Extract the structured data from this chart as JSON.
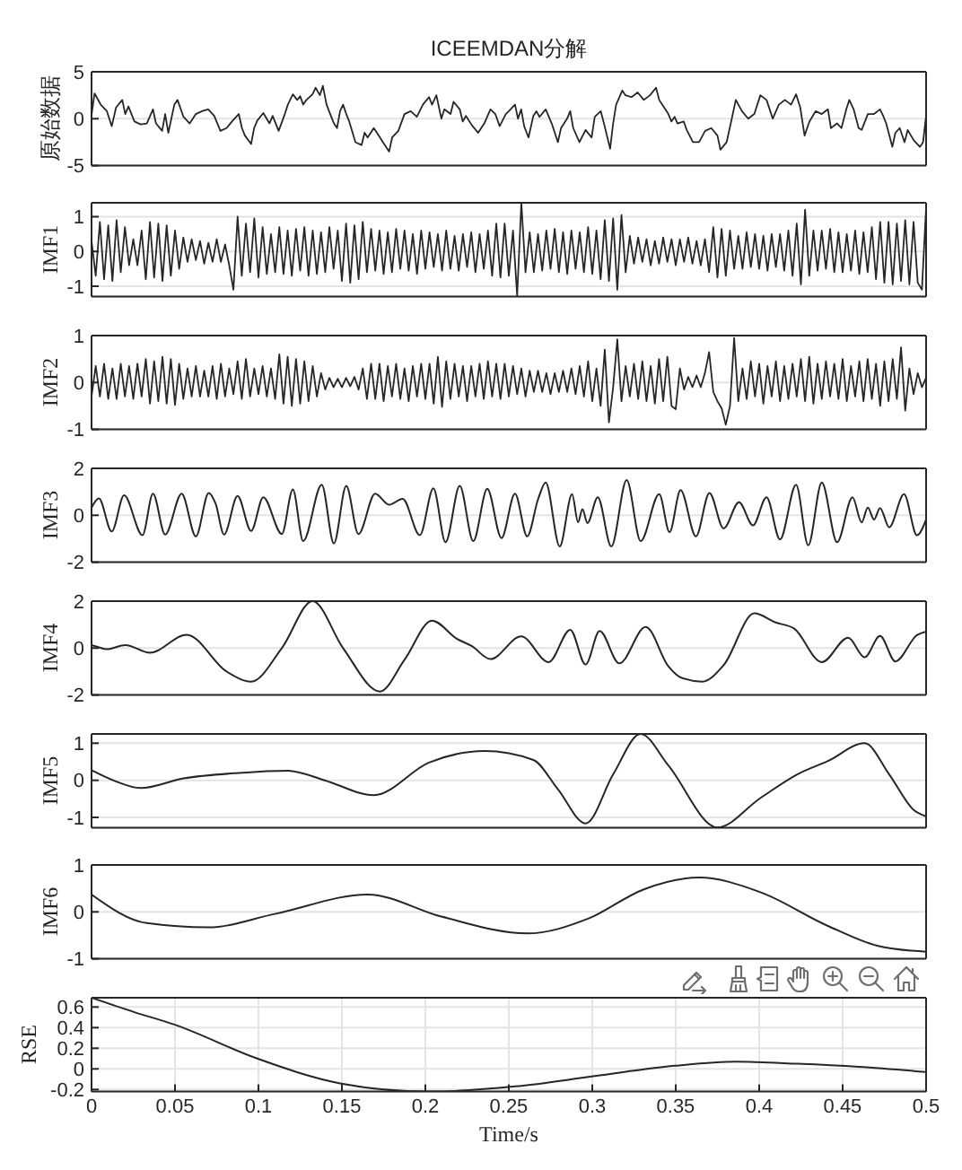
{
  "chart_data": [
    {
      "type": "line",
      "title": "ICEEMDAN分解",
      "ylabel": "原始数据",
      "color": "#262626",
      "xlim": [
        0,
        0.5
      ],
      "ylim": [
        -5,
        5
      ],
      "yticks": [
        -5,
        0,
        5
      ],
      "grid": "y",
      "tick_labels": "y",
      "x": [
        0,
        0.0018,
        0.0055,
        0.0092,
        0.0121,
        0.0147,
        0.0184,
        0.0202,
        0.0221,
        0.0257,
        0.0294,
        0.0331,
        0.0368,
        0.0386,
        0.0423,
        0.0441,
        0.046,
        0.0496,
        0.0515,
        0.0551,
        0.0588,
        0.0625,
        0.0662,
        0.0699,
        0.0735,
        0.0772,
        0.0809,
        0.0846,
        0.0882,
        0.0901,
        0.0919,
        0.0956,
        0.0974,
        0.0993,
        0.1029,
        0.1066,
        0.1085,
        0.1121,
        0.1158,
        0.1176,
        0.1206,
        0.1232,
        0.125,
        0.1268,
        0.1287,
        0.1324,
        0.1342,
        0.1368,
        0.1386,
        0.1408,
        0.1434,
        0.1452,
        0.1471,
        0.1489,
        0.1507,
        0.1526,
        0.1544,
        0.1581,
        0.1618,
        0.1636,
        0.1654,
        0.1691,
        0.171,
        0.1746,
        0.1783,
        0.1801,
        0.1838,
        0.1875,
        0.1912,
        0.1949,
        0.1985,
        0.2022,
        0.204,
        0.2066,
        0.2096,
        0.2114,
        0.2151,
        0.2169,
        0.2206,
        0.2224,
        0.2243,
        0.2279,
        0.2316,
        0.2353,
        0.239,
        0.2419,
        0.2445,
        0.2482,
        0.25,
        0.2537,
        0.2555,
        0.2574,
        0.2592,
        0.2618,
        0.2647,
        0.2665,
        0.2684,
        0.2721,
        0.2757,
        0.2794,
        0.2813,
        0.2849,
        0.2868,
        0.2886,
        0.2923,
        0.296,
        0.2996,
        0.3015,
        0.3051,
        0.307,
        0.3107,
        0.3125,
        0.3143,
        0.318,
        0.3199,
        0.3235,
        0.3272,
        0.3309,
        0.3346,
        0.3382,
        0.3401,
        0.3419,
        0.3456,
        0.3474,
        0.3493,
        0.3511,
        0.3548,
        0.3566,
        0.3603,
        0.364,
        0.3676,
        0.3713,
        0.375,
        0.3768,
        0.3805,
        0.3842,
        0.386,
        0.3897,
        0.3934,
        0.3971,
        0.4007,
        0.4044,
        0.4063,
        0.4081,
        0.4118,
        0.4154,
        0.4191,
        0.4221,
        0.4246,
        0.4272,
        0.4301,
        0.4338,
        0.4375,
        0.4412,
        0.443,
        0.4467,
        0.4493,
        0.4522,
        0.454,
        0.4566,
        0.4596,
        0.4614,
        0.4651,
        0.4688,
        0.4724,
        0.4743,
        0.4761,
        0.4798,
        0.4816,
        0.4842,
        0.4871,
        0.489,
        0.4926,
        0.4963,
        0.4982,
        0.5
      ],
      "values": [
        0.4,
        2.7,
        1.5,
        0.8,
        -0.8,
        1.2,
        2.0,
        0.5,
        1.3,
        -0.3,
        -0.6,
        -0.5,
        1.0,
        -0.5,
        -1.3,
        0.5,
        -1.5,
        1.5,
        2.0,
        0.2,
        -0.5,
        0.5,
        0.8,
        1.0,
        0.3,
        -1.3,
        -1.0,
        -0.2,
        0.5,
        -1.0,
        -1.8,
        -2.7,
        -1.0,
        -0.2,
        0.6,
        -0.5,
        0.3,
        -1.3,
        0.5,
        1.5,
        2.6,
        2.0,
        2.4,
        1.5,
        2.0,
        2.6,
        3.3,
        2.5,
        3.5,
        1.5,
        0.3,
        -0.5,
        -1.0,
        0.8,
        1.5,
        0.5,
        -0.3,
        -2.5,
        -2.8,
        -1.5,
        -2.0,
        -1.0,
        -1.5,
        -2.5,
        -3.5,
        -2.0,
        -1.3,
        0.5,
        0.8,
        0.2,
        1.5,
        2.3,
        1.5,
        2.5,
        0.0,
        1.0,
        0.5,
        1.8,
        1.0,
        -0.3,
        0.3,
        -0.7,
        -1.5,
        -0.5,
        1.0,
        0.5,
        -0.8,
        0.5,
        0.8,
        1.5,
        0.0,
        1.0,
        -0.8,
        -2.0,
        0.3,
        0.8,
        0.2,
        1.0,
        -0.5,
        -2.5,
        -1.0,
        0.0,
        0.8,
        -1.0,
        -2.5,
        -1.2,
        -2.0,
        0.2,
        0.8,
        -0.5,
        -3.2,
        -0.5,
        1.5,
        3.0,
        2.5,
        2.3,
        2.8,
        2.0,
        2.5,
        3.3,
        2.0,
        1.5,
        0.5,
        -0.3,
        0.2,
        -0.5,
        -0.3,
        -1.2,
        -2.5,
        -2.5,
        -1.3,
        -1.0,
        -1.8,
        -3.3,
        -2.5,
        0.5,
        2.0,
        0.8,
        0.0,
        0.5,
        2.5,
        2.0,
        1.0,
        0.0,
        1.5,
        2.0,
        1.5,
        2.6,
        1.2,
        -1.8,
        -0.3,
        0.8,
        0.5,
        1.0,
        -1.0,
        -0.5,
        -1.0,
        1.0,
        2.0,
        1.0,
        -1.0,
        -1.2,
        0.5,
        0.5,
        1.0,
        0.3,
        -0.5,
        -3.0,
        -1.5,
        -1.0,
        -2.5,
        -1.2,
        -2.3,
        -3.0,
        -2.5,
        0.3
      ]
    },
    {
      "type": "line",
      "ylabel": "IMF1",
      "color": "#262626",
      "xlim": [
        0,
        0.5
      ],
      "ylim": [
        -1.3,
        1.4
      ],
      "yticks": [
        -1,
        0,
        1
      ],
      "grid": "y",
      "tick_labels": "y",
      "x": [
        0,
        0.0025,
        0.005,
        0.0075,
        0.01,
        0.0125,
        0.015,
        0.0175,
        0.02,
        0.0225,
        0.025,
        0.0275,
        0.03,
        0.0325,
        0.035,
        0.0375,
        0.04,
        0.0425,
        0.045,
        0.0475,
        0.05,
        0.0525,
        0.055,
        0.0575,
        0.06,
        0.0625,
        0.065,
        0.0675,
        0.07,
        0.0725,
        0.075,
        0.0775,
        0.08,
        0.0825,
        0.085,
        0.0875,
        0.09,
        0.0925,
        0.095,
        0.0975,
        0.1,
        0.1025,
        0.105,
        0.1075,
        0.11,
        0.1125,
        0.115,
        0.1175,
        0.12,
        0.1225,
        0.125,
        0.1275,
        0.13,
        0.1325,
        0.135,
        0.1375,
        0.14,
        0.1425,
        0.145,
        0.1475,
        0.15,
        0.1525,
        0.155,
        0.1575,
        0.16,
        0.1625,
        0.165,
        0.1675,
        0.17,
        0.1725,
        0.175,
        0.1775,
        0.18,
        0.1825,
        0.185,
        0.1875,
        0.19,
        0.1925,
        0.195,
        0.1975,
        0.2,
        0.2025,
        0.205,
        0.2075,
        0.21,
        0.2125,
        0.215,
        0.2175,
        0.22,
        0.2225,
        0.225,
        0.2275,
        0.23,
        0.2325,
        0.235,
        0.2375,
        0.24,
        0.2425,
        0.245,
        0.2475,
        0.25,
        0.2525,
        0.255,
        0.2575,
        0.26,
        0.2625,
        0.265,
        0.2675,
        0.27,
        0.2725,
        0.275,
        0.2775,
        0.28,
        0.2825,
        0.285,
        0.2875,
        0.29,
        0.2925,
        0.295,
        0.2975,
        0.3,
        0.3025,
        0.305,
        0.3075,
        0.31,
        0.3125,
        0.315,
        0.3175,
        0.32,
        0.3225,
        0.325,
        0.3275,
        0.33,
        0.3325,
        0.335,
        0.3375,
        0.34,
        0.3425,
        0.345,
        0.3475,
        0.35,
        0.3525,
        0.355,
        0.3575,
        0.36,
        0.3625,
        0.365,
        0.3675,
        0.37,
        0.3725,
        0.375,
        0.3775,
        0.38,
        0.3825,
        0.385,
        0.3875,
        0.39,
        0.3925,
        0.395,
        0.3975,
        0.4,
        0.4025,
        0.405,
        0.4075,
        0.41,
        0.4125,
        0.415,
        0.4175,
        0.42,
        0.4225,
        0.425,
        0.4275,
        0.43,
        0.4325,
        0.435,
        0.4375,
        0.44,
        0.4425,
        0.445,
        0.4475,
        0.45,
        0.4525,
        0.455,
        0.4575,
        0.46,
        0.4625,
        0.465,
        0.4675,
        0.47,
        0.4725,
        0.475,
        0.4775,
        0.48,
        0.4825,
        0.485,
        0.4875,
        0.49,
        0.4925,
        0.495,
        0.4975,
        0.5
      ],
      "values": [
        0.3,
        -0.7,
        0.85,
        -0.8,
        0.75,
        -0.85,
        0.9,
        -0.6,
        0.7,
        -0.4,
        0.35,
        -0.4,
        0.6,
        -0.8,
        0.85,
        -0.75,
        0.8,
        -0.85,
        0.75,
        -0.7,
        0.6,
        -0.5,
        0.4,
        -0.3,
        0.35,
        -0.25,
        0.3,
        -0.35,
        0.25,
        -0.3,
        0.35,
        -0.3,
        0.2,
        -0.4,
        -1.1,
        1.0,
        -0.7,
        0.8,
        -0.6,
        0.95,
        -0.75,
        0.7,
        -0.65,
        0.5,
        -0.6,
        0.7,
        -0.65,
        0.6,
        -0.7,
        0.65,
        -0.55,
        0.7,
        -0.7,
        0.6,
        -0.65,
        0.55,
        -0.6,
        0.7,
        -0.5,
        0.6,
        -0.85,
        0.8,
        -0.9,
        0.75,
        -0.8,
        0.85,
        -0.6,
        0.65,
        -0.55,
        0.6,
        -0.65,
        0.55,
        -0.6,
        0.65,
        -0.5,
        0.6,
        -0.55,
        0.5,
        -0.65,
        0.6,
        -0.5,
        0.55,
        -0.45,
        0.5,
        -0.55,
        0.6,
        -0.5,
        0.45,
        -0.55,
        0.5,
        -0.45,
        0.55,
        -0.6,
        0.5,
        -0.5,
        0.6,
        -0.7,
        0.8,
        -0.75,
        0.8,
        -0.7,
        0.6,
        -1.28,
        1.4,
        -0.6,
        0.55,
        -0.6,
        0.5,
        -0.55,
        0.6,
        -0.5,
        0.65,
        -0.6,
        0.55,
        -0.65,
        0.6,
        -0.5,
        0.55,
        -0.6,
        0.7,
        -0.65,
        0.6,
        -0.8,
        0.9,
        -0.85,
        0.95,
        -1.1,
        1.05,
        -0.6,
        0.45,
        -0.35,
        0.4,
        -0.3,
        0.35,
        -0.4,
        0.3,
        -0.35,
        0.4,
        -0.3,
        0.35,
        -0.4,
        0.35,
        -0.3,
        0.4,
        -0.35,
        0.3,
        -0.4,
        0.35,
        -0.6,
        0.7,
        -0.75,
        0.65,
        -0.7,
        0.6,
        -0.5,
        0.45,
        -0.5,
        0.55,
        -0.45,
        0.5,
        -0.5,
        0.45,
        -0.55,
        0.5,
        -0.45,
        0.5,
        -0.55,
        0.6,
        -0.7,
        0.8,
        -0.95,
        1.2,
        -0.7,
        0.6,
        -0.55,
        0.6,
        -0.5,
        0.65,
        -0.6,
        0.55,
        -0.6,
        0.5,
        -0.55,
        0.6,
        -0.65,
        0.55,
        -0.6,
        0.7,
        -0.8,
        0.85,
        -0.9,
        0.85,
        -0.95,
        0.8,
        -0.85,
        0.9,
        -0.95,
        0.85,
        -0.9,
        -1.1,
        1.25
      ]
    },
    {
      "type": "line",
      "ylabel": "IMF2",
      "color": "#262626",
      "xlim": [
        0,
        0.5
      ],
      "ylim": [
        -1,
        1
      ],
      "yticks": [
        -1,
        0,
        1
      ],
      "grid": "y",
      "tick_labels": "y",
      "x": [
        0,
        0.0025,
        0.005,
        0.0075,
        0.01,
        0.0125,
        0.015,
        0.0175,
        0.02,
        0.0225,
        0.025,
        0.0275,
        0.03,
        0.0325,
        0.035,
        0.0375,
        0.04,
        0.0425,
        0.045,
        0.0475,
        0.05,
        0.0525,
        0.055,
        0.0575,
        0.06,
        0.0625,
        0.065,
        0.0675,
        0.07,
        0.0725,
        0.075,
        0.0775,
        0.08,
        0.0825,
        0.085,
        0.0875,
        0.09,
        0.0925,
        0.095,
        0.0975,
        0.1,
        0.1025,
        0.105,
        0.1075,
        0.11,
        0.1125,
        0.115,
        0.1175,
        0.12,
        0.1225,
        0.125,
        0.1275,
        0.13,
        0.1325,
        0.135,
        0.1375,
        0.14,
        0.1425,
        0.145,
        0.1475,
        0.15,
        0.1525,
        0.155,
        0.1575,
        0.16,
        0.1625,
        0.165,
        0.1675,
        0.17,
        0.1725,
        0.175,
        0.1775,
        0.18,
        0.1825,
        0.185,
        0.1875,
        0.19,
        0.1925,
        0.195,
        0.1975,
        0.2,
        0.2025,
        0.205,
        0.2075,
        0.21,
        0.2125,
        0.215,
        0.2175,
        0.22,
        0.2225,
        0.225,
        0.2275,
        0.23,
        0.2325,
        0.235,
        0.2375,
        0.24,
        0.2425,
        0.245,
        0.2475,
        0.25,
        0.2525,
        0.255,
        0.2575,
        0.26,
        0.2625,
        0.265,
        0.2675,
        0.27,
        0.2725,
        0.275,
        0.2775,
        0.28,
        0.2825,
        0.285,
        0.2875,
        0.29,
        0.2925,
        0.295,
        0.2975,
        0.3,
        0.3025,
        0.305,
        0.3075,
        0.31,
        0.3125,
        0.315,
        0.3175,
        0.32,
        0.3225,
        0.325,
        0.3275,
        0.33,
        0.3325,
        0.335,
        0.3375,
        0.34,
        0.3425,
        0.345,
        0.3475,
        0.35,
        0.3525,
        0.355,
        0.3575,
        0.36,
        0.3625,
        0.365,
        0.3675,
        0.37,
        0.3725,
        0.375,
        0.3775,
        0.38,
        0.3825,
        0.385,
        0.3875,
        0.39,
        0.3925,
        0.395,
        0.3975,
        0.4,
        0.4025,
        0.405,
        0.4075,
        0.41,
        0.4125,
        0.415,
        0.4175,
        0.42,
        0.4225,
        0.425,
        0.4275,
        0.43,
        0.4325,
        0.435,
        0.4375,
        0.44,
        0.4425,
        0.445,
        0.4475,
        0.45,
        0.4525,
        0.455,
        0.4575,
        0.46,
        0.4625,
        0.465,
        0.4675,
        0.47,
        0.4725,
        0.475,
        0.4775,
        0.48,
        0.4825,
        0.485,
        0.4875,
        0.49,
        0.4925,
        0.495,
        0.4975,
        0.5
      ],
      "values": [
        -0.3,
        0.35,
        -0.3,
        0.4,
        -0.35,
        0.3,
        -0.35,
        0.4,
        -0.3,
        0.35,
        -0.35,
        0.4,
        -0.3,
        0.5,
        -0.45,
        0.45,
        -0.4,
        0.55,
        -0.45,
        0.5,
        -0.48,
        0.4,
        -0.35,
        0.3,
        -0.3,
        0.35,
        -0.3,
        0.25,
        -0.3,
        0.35,
        -0.35,
        0.4,
        -0.3,
        0.3,
        -0.25,
        0.45,
        -0.35,
        0.5,
        -0.3,
        0.3,
        -0.25,
        0.35,
        -0.3,
        0.3,
        -0.35,
        0.6,
        -0.45,
        0.55,
        -0.5,
        0.5,
        -0.45,
        0.45,
        -0.4,
        0.35,
        -0.3,
        0.2,
        -0.15,
        0.1,
        -0.1,
        0.08,
        -0.1,
        0.1,
        -0.08,
        0.12,
        -0.15,
        0.3,
        -0.35,
        0.4,
        -0.35,
        0.4,
        -0.4,
        0.35,
        -0.3,
        0.4,
        -0.35,
        0.3,
        -0.4,
        0.35,
        -0.3,
        0.4,
        -0.35,
        0.4,
        -0.45,
        0.55,
        -0.52,
        0.45,
        -0.35,
        0.4,
        -0.3,
        0.35,
        -0.4,
        0.35,
        -0.3,
        0.4,
        -0.35,
        0.45,
        -0.3,
        0.4,
        -0.35,
        0.4,
        -0.3,
        0.35,
        -0.25,
        0.3,
        -0.3,
        0.25,
        -0.2,
        0.25,
        -0.2,
        0.2,
        -0.25,
        0.2,
        -0.2,
        0.25,
        -0.2,
        0.3,
        -0.25,
        0.35,
        -0.3,
        0.45,
        -0.4,
        0.3,
        -0.5,
        0.7,
        -0.85,
        -0.1,
        0.92,
        -0.4,
        0.35,
        -0.3,
        0.4,
        -0.35,
        0.45,
        -0.4,
        0.35,
        -0.45,
        0.5,
        -0.4,
        0.55,
        -0.5,
        -0.57,
        0.3,
        -0.15,
        0.12,
        -0.1,
        0.15,
        -0.1,
        0.2,
        0.65,
        -0.2,
        -0.4,
        -0.55,
        -0.9,
        -0.5,
        0.95,
        -0.4,
        0.3,
        -0.35,
        0.45,
        -0.3,
        0.4,
        -0.45,
        0.35,
        -0.3,
        0.45,
        -0.4,
        0.35,
        -0.35,
        0.4,
        -0.3,
        0.5,
        -0.4,
        0.55,
        -0.45,
        0.4,
        -0.35,
        0.45,
        -0.3,
        0.4,
        -0.35,
        0.5,
        -0.4,
        0.35,
        -0.3,
        0.45,
        -0.4,
        0.5,
        -0.35,
        0.4,
        -0.5,
        0.45,
        -0.4,
        0.5,
        -0.35,
        0.75,
        -0.6,
        0.3,
        -0.25,
        0.2,
        -0.1,
        0.1
      ]
    },
    {
      "type": "line",
      "ylabel": "IMF3",
      "color": "#262626",
      "xlim": [
        0,
        0.5
      ],
      "ylim": [
        -2,
        2
      ],
      "yticks": [
        -2,
        0,
        2
      ],
      "grid": "y",
      "tick_labels": "y",
      "x": [
        0,
        0.0044,
        0.0121,
        0.0195,
        0.0305,
        0.0368,
        0.0441,
        0.054,
        0.0625,
        0.0702,
        0.0743,
        0.0794,
        0.0875,
        0.0956,
        0.1029,
        0.114,
        0.1206,
        0.1268,
        0.1379,
        0.1452,
        0.1526,
        0.1599,
        0.1699,
        0.1783,
        0.1864,
        0.1967,
        0.2048,
        0.2121,
        0.2206,
        0.2287,
        0.2371,
        0.2456,
        0.2537,
        0.261,
        0.2676,
        0.2721,
        0.2805,
        0.2879,
        0.2915,
        0.2941,
        0.2971,
        0.3033,
        0.3114,
        0.3206,
        0.329,
        0.3401,
        0.3463,
        0.3529,
        0.3621,
        0.3702,
        0.3787,
        0.3879,
        0.3963,
        0.4044,
        0.4125,
        0.4221,
        0.4294,
        0.4375,
        0.4467,
        0.4559,
        0.4614,
        0.4651,
        0.4688,
        0.4724,
        0.4779,
        0.4868,
        0.4945,
        0.5
      ],
      "values": [
        0.33,
        0.72,
        -0.69,
        0.85,
        -0.85,
        0.92,
        -0.82,
        0.92,
        -0.9,
        0.95,
        0.5,
        -0.82,
        0.82,
        -0.67,
        0.77,
        -0.8,
        1.1,
        -1.1,
        1.3,
        -1.2,
        1.25,
        -0.8,
        0.92,
        0.45,
        0.7,
        -0.85,
        1.15,
        -1.15,
        1.25,
        -1.1,
        1.13,
        -0.97,
        0.92,
        -0.9,
        0.7,
        1.4,
        -1.33,
        0.9,
        -0.3,
        0.26,
        -0.33,
        0.77,
        -1.33,
        1.5,
        -1.1,
        0.9,
        -0.72,
        1.07,
        -0.9,
        0.95,
        -0.56,
        0.56,
        -0.43,
        0.77,
        -1.03,
        1.3,
        -1.28,
        1.4,
        -1.15,
        0.77,
        -0.3,
        0.33,
        -0.18,
        0.31,
        -0.51,
        0.9,
        -0.85,
        -0.18
      ]
    },
    {
      "type": "line",
      "ylabel": "IMF4",
      "color": "#262626",
      "xlim": [
        0,
        0.5
      ],
      "ylim": [
        -2,
        2
      ],
      "yticks": [
        -2,
        0,
        2
      ],
      "grid": "y",
      "tick_labels": "y",
      "x": [
        0,
        0.0037,
        0.0092,
        0.0202,
        0.0349,
        0.057,
        0.0809,
        0.0956,
        0.114,
        0.1324,
        0.1507,
        0.1728,
        0.1875,
        0.204,
        0.2188,
        0.2279,
        0.239,
        0.2574,
        0.2739,
        0.2868,
        0.296,
        0.3044,
        0.3162,
        0.332,
        0.3456,
        0.3529,
        0.3658,
        0.3787,
        0.3971,
        0.4099,
        0.421,
        0.4375,
        0.4533,
        0.4632,
        0.4724,
        0.4816,
        0.4945,
        0.5
      ],
      "values": [
        0.13,
        0.05,
        -0.05,
        0.13,
        -0.2,
        0.57,
        -1.0,
        -1.43,
        0.0,
        2.0,
        0.0,
        -1.85,
        -0.5,
        1.17,
        0.4,
        0.08,
        -0.47,
        0.5,
        -0.6,
        0.78,
        -0.7,
        0.73,
        -0.65,
        0.9,
        -0.78,
        -1.25,
        -1.43,
        -0.73,
        1.48,
        1.09,
        0.83,
        -0.6,
        0.44,
        -0.39,
        0.52,
        -0.57,
        0.55,
        0.7
      ]
    },
    {
      "type": "line",
      "ylabel": "IMF5",
      "color": "#262626",
      "xlim": [
        0,
        0.5
      ],
      "ylim": [
        -1.28,
        1.25
      ],
      "yticks": [
        -1,
        0,
        1
      ],
      "grid": "y",
      "tick_labels": "y",
      "x": [
        0,
        0.0129,
        0.0294,
        0.0551,
        0.0882,
        0.1176,
        0.1397,
        0.1691,
        0.2022,
        0.2353,
        0.2647,
        0.2794,
        0.296,
        0.3125,
        0.329,
        0.3456,
        0.375,
        0.4007,
        0.4228,
        0.4412,
        0.4632,
        0.4779,
        0.4926,
        0.5
      ],
      "values": [
        0.27,
        0.0,
        -0.21,
        0.05,
        0.2,
        0.26,
        0.0,
        -0.4,
        0.48,
        0.79,
        0.55,
        -0.24,
        -1.16,
        0.16,
        1.25,
        0.4,
        -1.27,
        -0.48,
        0.16,
        0.52,
        1.0,
        0.16,
        -0.8,
        -0.97
      ]
    },
    {
      "type": "line",
      "ylabel": "IMF6",
      "color": "#262626",
      "xlim": [
        0,
        0.5
      ],
      "ylim": [
        -1,
        1
      ],
      "yticks": [
        -1,
        0,
        1
      ],
      "grid": "y",
      "tick_labels": "y",
      "x": [
        0,
        0.0331,
        0.0699,
        0.1103,
        0.1654,
        0.2096,
        0.261,
        0.2978,
        0.3309,
        0.364,
        0.4007,
        0.4412,
        0.4706,
        0.5
      ],
      "values": [
        0.37,
        -0.24,
        -0.33,
        -0.04,
        0.37,
        -0.1,
        -0.46,
        -0.14,
        0.48,
        0.73,
        0.42,
        -0.3,
        -0.72,
        -0.85
      ]
    },
    {
      "type": "line",
      "ylabel": "RSE",
      "xlabel": "Time/s",
      "color": "#262626",
      "xlim": [
        0,
        0.5
      ],
      "ylim": [
        -0.22,
        0.69
      ],
      "xticks": [
        0,
        0.05,
        0.1,
        0.15,
        0.2,
        0.25,
        0.3,
        0.35,
        0.4,
        0.45,
        0.5
      ],
      "yticks": [
        -0.2,
        0,
        0.2,
        0.4,
        0.6
      ],
      "grid": true,
      "x": [
        0,
        0.0257,
        0.0496,
        0.0993,
        0.1489,
        0.2022,
        0.2537,
        0.3015,
        0.3493,
        0.386,
        0.4228,
        0.4596,
        0.5
      ],
      "values": [
        0.69,
        0.55,
        0.43,
        0.1,
        -0.14,
        -0.22,
        -0.17,
        -0.07,
        0.03,
        0.07,
        0.05,
        0.02,
        -0.03
      ]
    }
  ]
}
